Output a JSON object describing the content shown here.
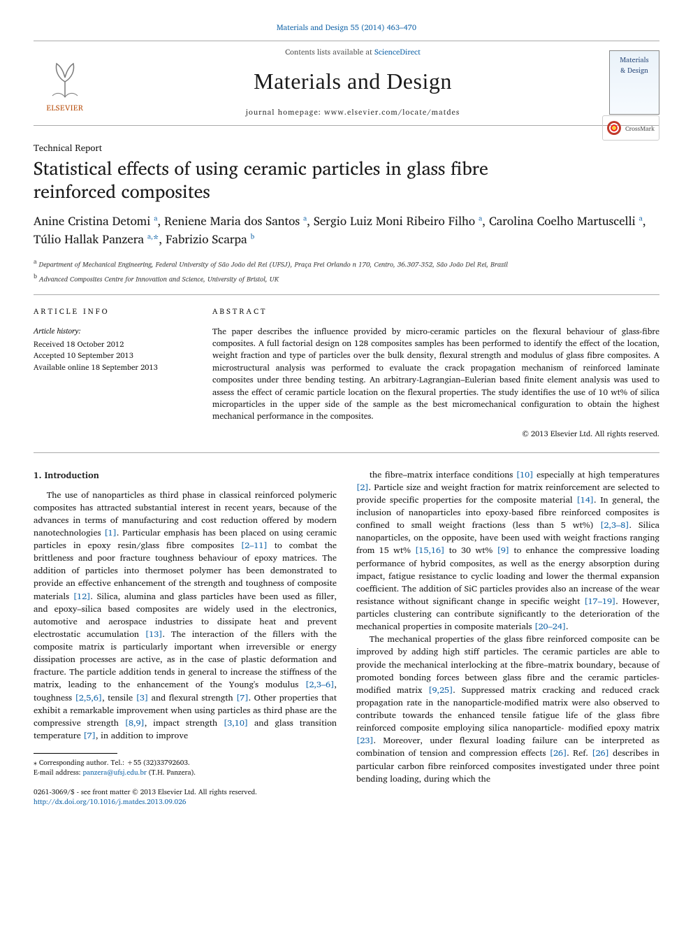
{
  "citation_line": "Materials and Design 55 (2014) 463–470",
  "contents_line_prefix": "Contents lists available at ",
  "contents_line_link": "ScienceDirect",
  "journal_name": "Materials and Design",
  "homepage_line": "journal homepage: www.elsevier.com/locate/matdes",
  "publisher_name": "ELSEVIER",
  "cover_line1": "Materials",
  "cover_line2": "& Design",
  "report_type": "Technical Report",
  "title": "Statistical effects of using ceramic particles in glass fibre reinforced composites",
  "crossmark_label": "CrossMark",
  "authors_html": "Anine Cristina Detomi <sup>a</sup>, Reniene Maria dos Santos <sup>a</sup>, Sergio Luiz Moni Ribeiro Filho <sup>a</sup>, Carolina Coelho Martuscelli <sup>a</sup>, Túlio Hallak Panzera <sup>a,</sup><span class='corr'>*</span>, Fabrizio Scarpa <sup>b</sup>",
  "affiliations": {
    "a": "Department of Mechanical Engineering, Federal University of São João del Rei (UFSJ), Praça Frei Orlando n 170, Centro, 36.307-352, São João Del Rei, Brazil",
    "b": "Advanced Composites Centre for Innovation and Science, University of Bristol, UK"
  },
  "article_info_heading": "ARTICLE INFO",
  "abstract_heading": "ABSTRACT",
  "history_label": "Article history:",
  "history": {
    "received": "Received 18 October 2012",
    "accepted": "Accepted 10 September 2013",
    "online": "Available online 18 September 2013"
  },
  "abstract": "The paper describes the influence provided by micro-ceramic particles on the flexural behaviour of glass-fibre composites. A full factorial design on 128 composites samples has been performed to identify the effect of the location, weight fraction and type of particles over the bulk density, flexural strength and modulus of glass fibre composites. A microstructural analysis was performed to evaluate the crack propagation mechanism of reinforced laminate composites under three bending testing. An arbitrary-Lagrangian–Eulerian based finite element analysis was used to assess the effect of ceramic particle location on the flexural properties. The study identifies the use of 10 wt% of silica microparticles in the upper side of the sample as the best micromechanical configuration to obtain the highest mechanical performance in the composites.",
  "copyright_line": "© 2013 Elsevier Ltd. All rights reserved.",
  "intro_heading": "1. Introduction",
  "body_left": "The use of nanoparticles as third phase in classical reinforced polymeric composites has attracted substantial interest in recent years, because of the advances in terms of manufacturing and cost reduction offered by modern nanotechnologies <a class='ref'>[1]</a>. Particular emphasis has been placed on using ceramic particles in epoxy resin/glass fibre composites <a class='ref'>[2–11]</a> to combat the brittleness and poor fracture toughness behaviour of epoxy matrices. The addition of particles into thermoset polymer has been demonstrated to provide an effective enhancement of the strength and toughness of composite materials <a class='ref'>[12]</a>. Silica, alumina and glass particles have been used as filler, and epoxy–silica based composites are widely used in the electronics, automotive and aerospace industries to dissipate heat and prevent electrostatic accumulation <a class='ref'>[13]</a>. The interaction of the fillers with the composite matrix is particularly important when irreversible or energy dissipation processes are active, as in the case of plastic deformation and fracture. The particle addition tends in general to increase the stiffness of the matrix, leading to the enhancement of the Young's modulus <a class='ref'>[2,3–6]</a>, toughness <a class='ref'>[2,5,6]</a>, tensile <a class='ref'>[3]</a> and flexural strength <a class='ref'>[7]</a>. Other properties that exhibit a remarkable improvement when using particles as third phase are the compressive strength <a class='ref'>[8,9]</a>, impact strength <a class='ref'>[3,10]</a> and glass transition temperature <a class='ref'>[7]</a>, in addition to improve",
  "body_right": "the fibre–matrix interface conditions <a class='ref'>[10]</a> especially at high temperatures <a class='ref'>[2]</a>. Particle size and weight fraction for matrix reinforcement are selected to provide specific properties for the composite material <a class='ref'>[14]</a>. In general, the inclusion of nanoparticles into epoxy-based fibre reinforced composites is confined to small weight fractions (less than 5 wt%) <a class='ref'>[2,3–8]</a>. Silica nanoparticles, on the opposite, have been used with weight fractions ranging from 15 wt% <a class='ref'>[15,16]</a> to 30 wt% <a class='ref'>[9]</a> to enhance the compressive loading performance of hybrid composites, as well as the energy absorption during impact, fatigue resistance to cyclic loading and lower the thermal expansion coefficient. The addition of SiC particles provides also an increase of the wear resistance without significant change in specific weight <a class='ref'>[17–19]</a>. However, particles clustering can contribute significantly to the deterioration of the mechanical properties in composite materials <a class='ref'>[20–24]</a>.",
  "body_right_p2": "The mechanical properties of the glass fibre reinforced composite can be improved by adding high stiff particles. The ceramic particles are able to provide the mechanical interlocking at the fibre–matrix boundary, because of promoted bonding forces between glass fibre and the ceramic particles-modified matrix <a class='ref'>[9,25]</a>. Suppressed matrix cracking and reduced crack propagation rate in the nanoparticle-modified matrix were also observed to contribute towards the enhanced tensile fatigue life of the glass fibre reinforced composite employing silica nanoparticle- modified epoxy matrix <a class='ref'>[23]</a>. Moreover, under flexural loading failure can be interpreted as combination of tension and compression effects <a class='ref'>[26]</a>. Ref. <a class='ref'>[26]</a> describes in particular carbon fibre reinforced composites investigated under three point bending loading, during which the",
  "footnote": {
    "corr_label": "⁎ Corresponding author. Tel.: +55 (32)33792603.",
    "email_label": "E-mail address:",
    "email": "panzera@ufsj.edu.br",
    "email_name": "(T.H. Panzera)."
  },
  "bottom": {
    "issn_line": "0261-3069/$ - see front matter © 2013 Elsevier Ltd. All rights reserved.",
    "doi": "http://dx.doi.org/10.1016/j.matdes.2013.09.026"
  },
  "colors": {
    "link": "#1566a9",
    "rule": "#aaaaaa",
    "elsevier": "#b9500f"
  }
}
